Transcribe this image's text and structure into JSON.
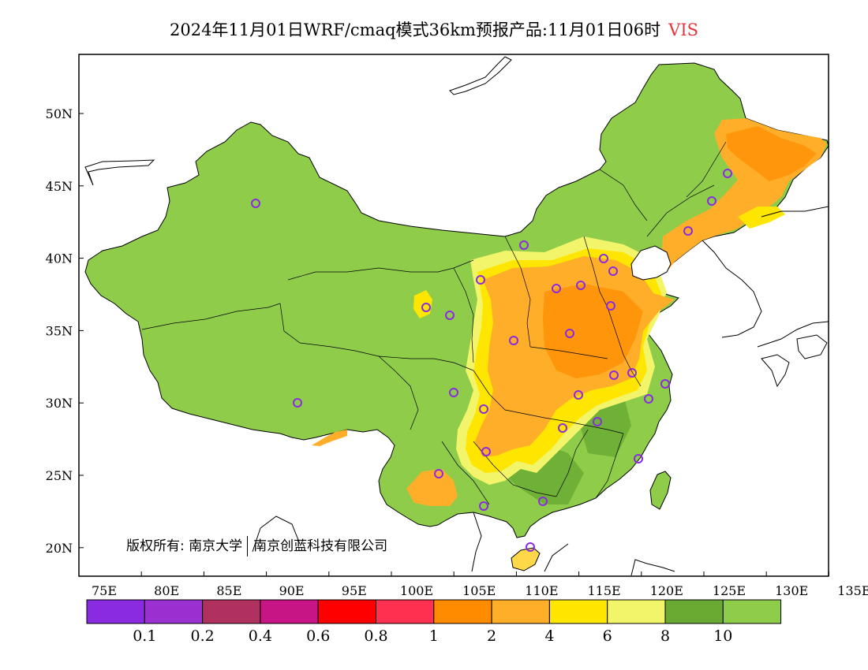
{
  "header": {
    "title": "2024年11月01日WRF/cmaq模式36km预报产品:11月01日06时",
    "variable": "VIS",
    "variable_color": "#e8333a"
  },
  "map": {
    "lat_labels": [
      "50N",
      "45N",
      "40N",
      "35N",
      "30N",
      "25N",
      "20N"
    ],
    "lon_labels": [
      "75E",
      "80E",
      "85E",
      "90E",
      "95E",
      "100E",
      "105E",
      "110E",
      "115E",
      "120E",
      "125E",
      "130E",
      "135E"
    ],
    "copyright": {
      "prefix": "版权所有: 南京大学",
      "suffix": "南京创蓝科技有限公司"
    }
  },
  "legend": {
    "colors": [
      "#8a2be2",
      "#9b30d0",
      "#b03060",
      "#c71585",
      "#ff0000",
      "#ff3050",
      "#ff8c00",
      "#ffae2a",
      "#ffe600",
      "#f2f56a",
      "#6aaa32",
      "#8fcc4a"
    ],
    "labels": [
      "0.1",
      "0.2",
      "0.4",
      "0.6",
      "0.8",
      "1",
      "2",
      "4",
      "6",
      "8",
      "10"
    ]
  }
}
